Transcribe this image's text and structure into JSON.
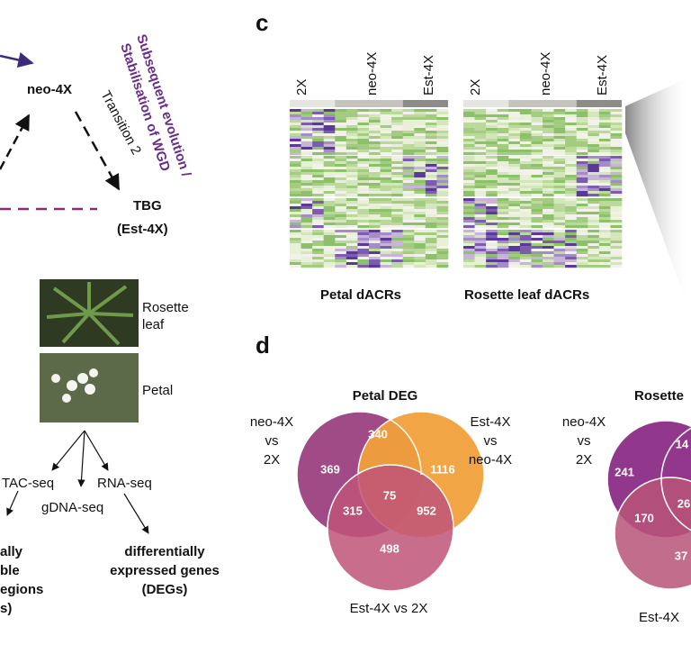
{
  "panel_labels": {
    "c": "c",
    "d": "d"
  },
  "diagram": {
    "neo": "neo-4X",
    "transition2": "Transition 2",
    "tbg": [
      "TBG",
      "(Est-4X)"
    ],
    "evolution": [
      "Subsequent evolution /",
      "Stabilisation of WGD"
    ]
  },
  "heatmaps": [
    {
      "groups": [
        "2X",
        "neo-4X",
        "Est-4X"
      ],
      "caption": "Petal dACRs"
    },
    {
      "groups": [
        "2X",
        "neo-4X",
        "Est-4X"
      ],
      "caption": "Rosette leaf dACRs"
    }
  ],
  "workflow": {
    "rosette": [
      "Rosette",
      "leaf"
    ],
    "petal": "Petal",
    "atac": "TAC-seq",
    "rna": "RNA-seq",
    "gdna": "gDNA-seq",
    "dacr": [
      "ally",
      "ble",
      "egions",
      "s)"
    ],
    "deg": [
      "differentially",
      "expressed genes",
      "(DEGs)"
    ]
  },
  "venn_petal": {
    "title": "Petal DEG",
    "label_a": [
      "neo-4X",
      "vs",
      "2X"
    ],
    "label_b": [
      "Est-4X",
      "vs",
      "neo-4X"
    ],
    "label_c": "Est-4X vs 2X",
    "numbers": [
      "369",
      "340",
      "1116",
      "75",
      "315",
      "952",
      "498"
    ]
  },
  "venn_rosette": {
    "title": "Rosette",
    "label_a": [
      "neo-4X",
      "vs",
      "2X"
    ],
    "label_c": "Est-4X",
    "numbers": [
      "241",
      "14",
      "26",
      "170",
      "37"
    ]
  }
}
